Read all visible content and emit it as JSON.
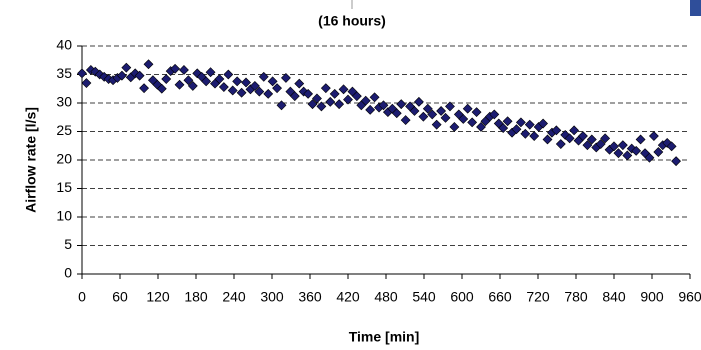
{
  "chart_data": {
    "type": "scatter",
    "title": "(16 hours)",
    "xlabel": "Time [min]",
    "ylabel": "Airflow rate [l/s]",
    "color": "#1c1c70",
    "grid": true,
    "xlim": [
      0,
      960
    ],
    "xticks": [
      0,
      60,
      120,
      180,
      240,
      300,
      360,
      420,
      480,
      540,
      600,
      660,
      720,
      780,
      840,
      900,
      960
    ],
    "ylim": [
      0,
      40
    ],
    "yticks": [
      0,
      5,
      10,
      15,
      20,
      25,
      30,
      35,
      40
    ],
    "x": [
      0,
      7,
      14,
      21,
      28,
      35,
      42,
      49,
      56,
      63,
      70,
      77,
      84,
      91,
      98,
      105,
      112,
      119,
      126,
      133,
      140,
      147,
      154,
      161,
      168,
      175,
      182,
      189,
      196,
      203,
      210,
      217,
      224,
      231,
      238,
      245,
      252,
      259,
      266,
      273,
      280,
      287,
      294,
      301,
      308,
      315,
      322,
      329,
      336,
      343,
      350,
      357,
      364,
      371,
      378,
      385,
      392,
      399,
      406,
      413,
      420,
      427,
      434,
      441,
      448,
      455,
      462,
      469,
      476,
      483,
      490,
      497,
      504,
      511,
      518,
      525,
      532,
      539,
      546,
      553,
      560,
      567,
      574,
      581,
      588,
      595,
      602,
      609,
      616,
      623,
      630,
      637,
      644,
      651,
      658,
      665,
      672,
      679,
      686,
      693,
      700,
      707,
      714,
      721,
      728,
      735,
      742,
      749,
      756,
      763,
      770,
      777,
      784,
      791,
      798,
      805,
      812,
      819,
      826,
      833,
      840,
      847,
      854,
      861,
      868,
      875,
      882,
      889,
      896,
      903,
      910,
      917,
      924,
      931,
      938
    ],
    "values": [
      35.2,
      33.5,
      35.8,
      35.5,
      35,
      34.6,
      34.2,
      34,
      34.4,
      34.8,
      36.2,
      34.5,
      35.2,
      34.8,
      32.6,
      36.8,
      34,
      33.2,
      32.5,
      34.2,
      35.6,
      36,
      33.2,
      35.8,
      34,
      33,
      35.2,
      34.6,
      33.8,
      35.4,
      33.4,
      34.2,
      32.8,
      35,
      32.2,
      33.8,
      31.8,
      33.6,
      32.4,
      33,
      32,
      34.6,
      31.6,
      33.8,
      32.6,
      29.6,
      34.4,
      32,
      31.2,
      33.4,
      32,
      31.6,
      29.8,
      30.8,
      29.4,
      32.6,
      30.2,
      31.6,
      29.8,
      32.4,
      30.6,
      32,
      31.2,
      29.6,
      30.4,
      28.8,
      31,
      29.2,
      29.6,
      28.4,
      29,
      28.2,
      29.8,
      27,
      29.4,
      28.6,
      30.2,
      27.6,
      29,
      28,
      26.2,
      28.6,
      27.4,
      29.4,
      25.8,
      28,
      27.2,
      29,
      26.6,
      28.4,
      25.8,
      26.8,
      27.6,
      28,
      26.4,
      25.6,
      26.8,
      24.8,
      25.4,
      26.6,
      24.6,
      26.2,
      24.2,
      25.8,
      26.4,
      23.6,
      24.8,
      25.2,
      22.8,
      24.4,
      23.8,
      25.2,
      23.4,
      24.2,
      22.6,
      23.6,
      22.2,
      22.8,
      23.8,
      21.8,
      22.4,
      21.2,
      22.6,
      20.8,
      22,
      21.6,
      23.6,
      21.2,
      20.4,
      24.2,
      21.4,
      22.6,
      23,
      22.4,
      19.8
    ]
  }
}
